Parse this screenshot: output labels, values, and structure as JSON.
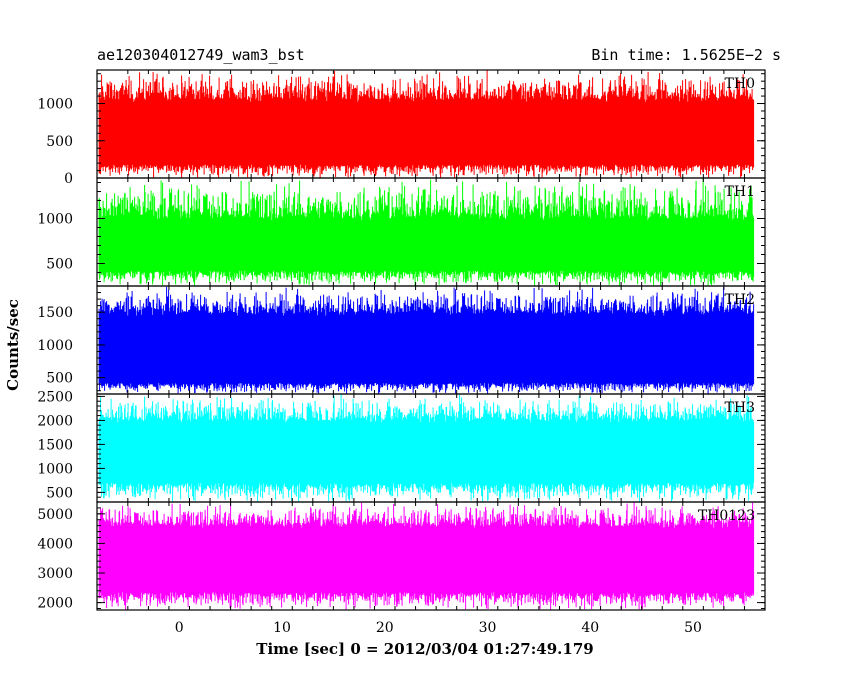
{
  "chart_data": {
    "type": "line",
    "title_left": "ae120304012749_wam3_bst",
    "title_right": "Bin time: 1.5625E−2 s",
    "xlabel": "Time [sec] 0 = 2012/03/04 01:27:49.179",
    "ylabel": "Counts/sec",
    "xlim": [
      -8,
      57
    ],
    "x_ticks": [
      0,
      10,
      20,
      30,
      40,
      50
    ],
    "x_data_range": [
      -7.8,
      55.9
    ],
    "panels": [
      {
        "name": "TH0",
        "color": "#ff0000",
        "ylim": [
          0,
          1450
        ],
        "y_ticks": [
          0,
          500,
          1000
        ],
        "band_low": 180,
        "band_high": 1050,
        "spike_min": 0,
        "spike_max": 1450
      },
      {
        "name": "TH1",
        "color": "#00ff00",
        "ylim": [
          250,
          1450
        ],
        "y_ticks": [
          500,
          1000
        ],
        "band_low": 420,
        "band_high": 1000,
        "spike_min": 250,
        "spike_max": 1450
      },
      {
        "name": "TH2",
        "color": "#0000ff",
        "ylim": [
          250,
          1900
        ],
        "y_ticks": [
          500,
          1000,
          1500
        ],
        "band_low": 420,
        "band_high": 1480,
        "spike_min": 250,
        "spike_max": 1900
      },
      {
        "name": "TH3",
        "color": "#00ffff",
        "ylim": [
          300,
          2550
        ],
        "y_ticks": [
          500,
          1000,
          1500,
          2000,
          2500
        ],
        "band_low": 700,
        "band_high": 2000,
        "spike_min": 300,
        "spike_max": 2550
      },
      {
        "name": "TH0123",
        "color": "#ff00ff",
        "ylim": [
          1750,
          5400
        ],
        "y_ticks": [
          2000,
          3000,
          4000,
          5000
        ],
        "band_low": 2350,
        "band_high": 4600,
        "spike_min": 1750,
        "spike_max": 5400
      }
    ],
    "grid": false,
    "legend": "panel labels top-right"
  }
}
